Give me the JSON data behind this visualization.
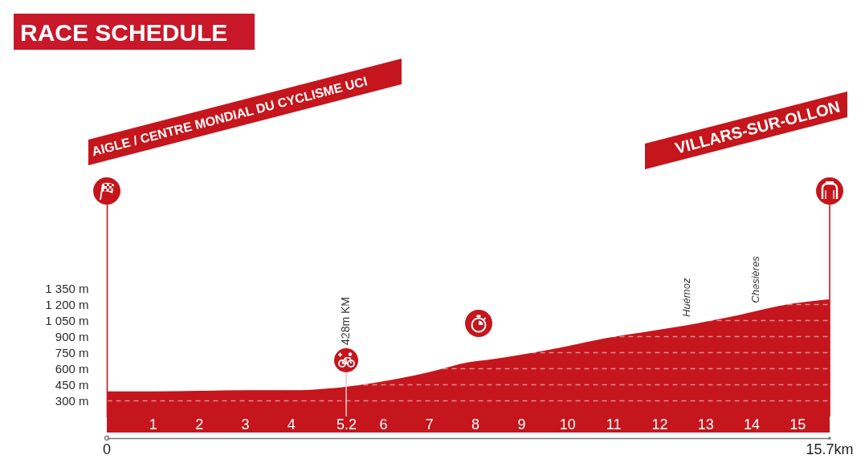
{
  "chart_data": {
    "type": "area",
    "title": "RACE SCHEDULE",
    "x": [
      0,
      1,
      2,
      3,
      4,
      4.9,
      5.2,
      6.1,
      7,
      7.9,
      8.3,
      8.9,
      9.5,
      10.1,
      10.7,
      11.3,
      11.9,
      12.5,
      13.1,
      13.7,
      14.3,
      14.9,
      15.7
    ],
    "series": [
      {
        "color": "#c4161c",
        "values": [
          385,
          385,
          390,
          395,
          395,
          415,
          428,
          485,
          565,
          660,
          680,
          720,
          765,
          815,
          870,
          915,
          955,
          995,
          1045,
          1095,
          1155,
          1205,
          1245
        ]
      }
    ],
    "xlim": [
      0,
      15.7
    ],
    "xticks": [
      1,
      2,
      3,
      4,
      5.2,
      6,
      7,
      8,
      9,
      10,
      11,
      12,
      13,
      14,
      15
    ],
    "ylim": [
      150,
      2250
    ],
    "yticks": [
      {
        "value": 300,
        "label": "300 m"
      },
      {
        "value": 450,
        "label": "450 m"
      },
      {
        "value": 600,
        "label": "600 m"
      },
      {
        "value": 750,
        "label": "750 m"
      },
      {
        "value": 900,
        "label": "900 m"
      },
      {
        "value": 1050,
        "label": "1 050 m"
      },
      {
        "value": 1200,
        "label": "1 200 m"
      },
      {
        "value": 1350,
        "label": "1 350 m"
      }
    ],
    "grid": "y",
    "ref_lines": [
      {
        "axis": "x",
        "value": 5.2,
        "label": "428m KM",
        "color": "#f3c3c6"
      },
      {
        "axis": "x",
        "value": 15.7,
        "label": "VILLARS-SUR-OLLON",
        "color": "#c4161c"
      }
    ],
    "annotations": [
      "AIGLE / CENTRE MONDIAL DU CYCLISME UCI",
      {
        "text": "Huémoz",
        "x": 12.6,
        "y": 1005
      },
      {
        "text": "Chesières",
        "x": 14.1,
        "y": 1135
      },
      "0",
      "15.7km"
    ]
  }
}
